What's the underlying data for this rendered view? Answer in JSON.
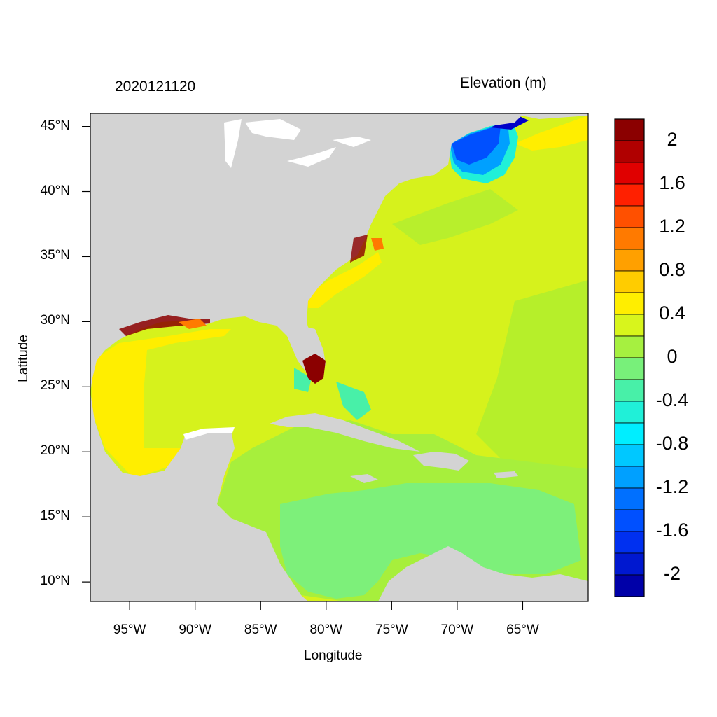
{
  "header": {
    "date_label": "2020121120",
    "variable_label": "Elevation (m)"
  },
  "axes": {
    "xlabel": "Longitude",
    "ylabel": "Latitude",
    "x_ticks": [
      "95°W",
      "90°W",
      "85°W",
      "80°W",
      "75°W",
      "70°W",
      "65°W"
    ],
    "y_ticks": [
      "45°N",
      "40°N",
      "35°N",
      "30°N",
      "25°N",
      "20°N",
      "15°N",
      "10°N"
    ],
    "x_tick_values": [
      -95,
      -90,
      -85,
      -80,
      -75,
      -70,
      -65
    ],
    "y_tick_values": [
      45,
      40,
      35,
      30,
      25,
      20,
      15,
      10
    ],
    "lon_range": [
      -98,
      -60
    ],
    "lat_range": [
      8.5,
      46
    ]
  },
  "colorbar": {
    "labels": [
      "2",
      "1.6",
      "1.2",
      "0.8",
      "0.4",
      "0",
      "-0.4",
      "-0.8",
      "-1.2",
      "-1.6",
      "-2"
    ],
    "colors": [
      "#8b0000",
      "#b00000",
      "#e00000",
      "#ff2000",
      "#ff5000",
      "#ff7a00",
      "#ffa000",
      "#ffcc00",
      "#ffee00",
      "#d8f51c",
      "#a6f040",
      "#78f07a",
      "#48f0a8",
      "#20f0d8",
      "#00eeff",
      "#00c8ff",
      "#00a0ff",
      "#0070ff",
      "#0050ff",
      "#0030f0",
      "#0018d0",
      "#0000a8"
    ]
  },
  "colors": {
    "land": "#d3d3d3",
    "ocean_base": "#d6f21c",
    "lakes": "#ffffff"
  }
}
